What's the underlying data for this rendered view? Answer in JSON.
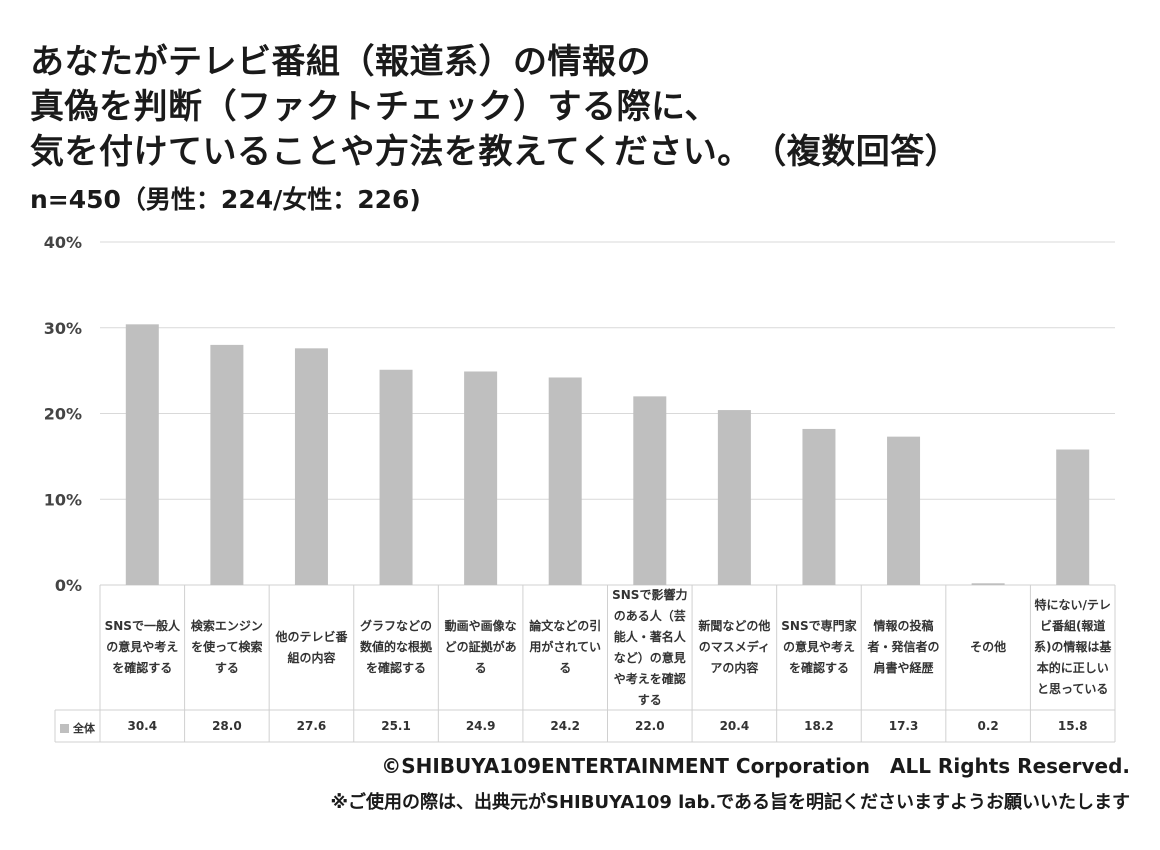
{
  "title_lines": [
    "あなたがテレビ番組（報道系）の情報の",
    "真偽を判断（ファクトチェック）する際に、",
    "気を付けていることや方法を教えてください。　（複数回答）"
  ],
  "subtitle": "n=450（男性：224/女性：226)",
  "footer": {
    "copyright": "©SHIBUYA109ENTERTAINMENT Corporation　ALL Rights Reserved.",
    "note": "※ご使用の際は、出典元がSHIBUYA109 lab.である旨を明記くださいますようお願いいたします"
  },
  "colors": {
    "bar": "#bfbfbf",
    "grid": "#d9d9d9",
    "table_border": "#d0d0d0"
  },
  "chart_data": {
    "type": "bar",
    "categories": [
      "SNSで一般人の意見や考えを確認する",
      "検索エンジンを使って検索する",
      "他のテレビ番組の内容",
      "グラフなどの数値的な根拠を確認する",
      "動画や画像などの証拠がある",
      "論文などの引用がされている",
      "SNSで影響力のある人（芸能人・著名人など）の意見や考えを確認する",
      "新聞などの他のマスメディアの内容",
      "SNSで専門家の意見や考えを確認する",
      "情報の投稿者・発信者の肩書や経歴",
      "その他",
      "特にない/テレビ番組(報道系)の情報は基本的に正しいと思っている"
    ],
    "series": [
      {
        "name": "全体",
        "values": [
          30.4,
          28.0,
          27.6,
          25.1,
          24.9,
          24.2,
          22.0,
          20.4,
          18.2,
          17.3,
          0.2,
          15.8
        ]
      }
    ],
    "value_labels": [
      "30.4",
      "28.0",
      "27.6",
      "25.1",
      "24.9",
      "24.2",
      "22.0",
      "20.4",
      "18.2",
      "17.3",
      "0.2",
      "15.8"
    ],
    "yticks": [
      "0%",
      "10%",
      "20%",
      "30%",
      "40%"
    ],
    "ylim": [
      0,
      40
    ],
    "grid": true,
    "legend": "bottom-left (data table)"
  }
}
